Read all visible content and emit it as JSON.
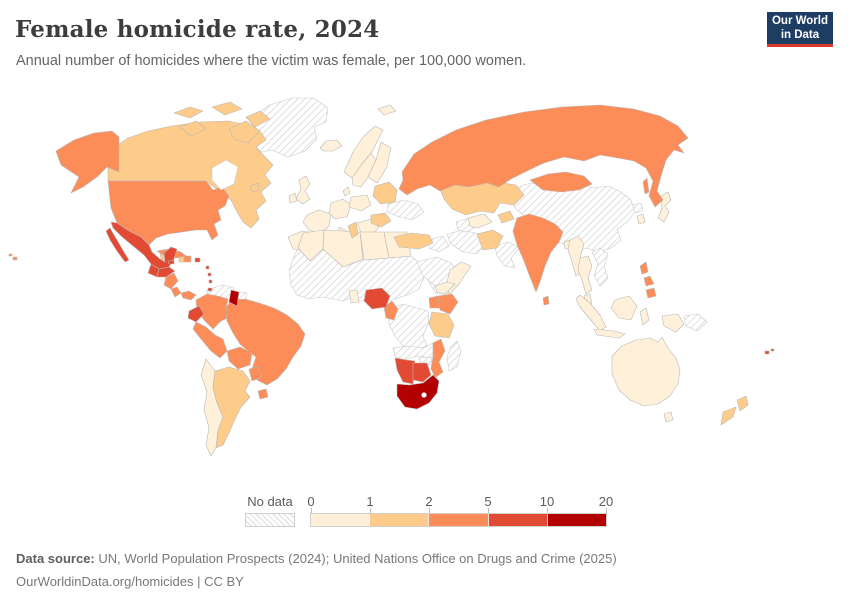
{
  "header": {
    "title": "Female homicide rate, 2024",
    "subtitle": "Annual number of homicides where the victim was female, per 100,000 women.",
    "logo": {
      "line1": "Our World",
      "line2": "in Data"
    }
  },
  "colors": {
    "logo_navy": "#1d3d63",
    "logo_red": "#d93b28",
    "map_border": "#b8b8b8"
  },
  "legend": {
    "no_data_label": "No data",
    "ticks": [
      "0",
      "1",
      "2",
      "5",
      "10",
      "20"
    ],
    "bins": [
      {
        "range": "0-1",
        "color": "#fef0d9"
      },
      {
        "range": "1-2",
        "color": "#fdcc8a"
      },
      {
        "range": "2-5",
        "color": "#fc8d59"
      },
      {
        "range": "5-10",
        "color": "#e34a33"
      },
      {
        "range": "10-20",
        "color": "#b30000"
      }
    ]
  },
  "footer": {
    "source_label": "Data source:",
    "source_text": " UN, World Population Prospects (2024); United Nations Office on Drugs and Crime (2025)",
    "link_text": "OurWorldinData.org/homicides | CC BY"
  },
  "chart_data": {
    "type": "choropleth",
    "title": "Female homicide rate, 2024",
    "unit": "female homicide victims per 100,000 women",
    "legend_bins": [
      "0-1",
      "1-2",
      "2-5",
      "5-10",
      "10-20"
    ],
    "values_by_bin": {
      "0-1": [
        "Iceland",
        "United Kingdom",
        "Ireland",
        "Norway",
        "Sweden",
        "Finland",
        "Denmark",
        "France",
        "Germany",
        "Poland",
        "Spain",
        "Portugal",
        "Italy",
        "Greece",
        "Balkans",
        "Egypt",
        "Libya",
        "Algeria",
        "Morocco",
        "Ghana",
        "Somalia",
        "Yemen",
        "Uzbekistan",
        "Bangladesh",
        "Myanmar",
        "Thailand",
        "Malaysia",
        "Indonesia",
        "Japan",
        "South Korea",
        "Australia",
        "Chile"
      ],
      "1-2": [
        "Canada",
        "Argentina",
        "Haiti",
        "Belize",
        "Turkey",
        "Kazakhstan",
        "Kyrgyzstan",
        "Afghanistan",
        "Nepal",
        "Baltic states",
        "Belarus",
        "Romania",
        "Tunisia",
        "Tanzania",
        "New Zealand"
      ],
      "2-5": [
        "United States",
        "Cuba",
        "Dominican Republic",
        "Nicaragua",
        "Costa Rica",
        "Panama",
        "Colombia",
        "Peru",
        "Brazil",
        "Bolivia",
        "Paraguay",
        "Uruguay",
        "Russia",
        "Mongolia",
        "India",
        "Sri Lanka",
        "Philippines",
        "Cameroon",
        "Uganda",
        "Kenya",
        "Mozambique",
        "Hawaii (US)"
      ],
      "5-10": [
        "Mexico",
        "Guatemala",
        "Honduras",
        "El Salvador",
        "Jamaica",
        "Puerto Rico",
        "Lesser Antilles",
        "Trinidad and Tobago",
        "Ecuador",
        "Nigeria",
        "Namibia",
        "Botswana",
        "Fiji"
      ],
      "10-20": [
        "Guyana",
        "South Africa"
      ],
      "no_data": [
        "Greenland",
        "Venezuela",
        "Suriname",
        "Ukraine",
        "Western Sahara",
        "Mauritania",
        "Mali",
        "Niger",
        "Chad",
        "Sudan",
        "Ethiopia",
        "DR Congo",
        "Angola",
        "Zambia",
        "Zimbabwe",
        "Madagascar",
        "Saudi Arabia",
        "Oman",
        "Iraq",
        "Syria",
        "Iran",
        "Turkmenistan",
        "Pakistan",
        "China",
        "Vietnam",
        "Laos",
        "Cambodia",
        "North Korea",
        "Papua New Guinea"
      ]
    }
  }
}
